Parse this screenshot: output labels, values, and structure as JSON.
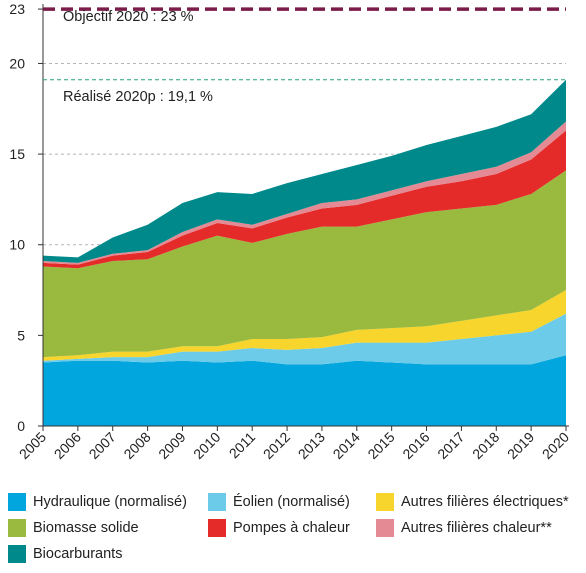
{
  "chart_data": {
    "type": "area",
    "stacked": true,
    "x": [
      "2005",
      "2006",
      "2007",
      "2008",
      "2009",
      "2010",
      "2011",
      "2012",
      "2013",
      "2014",
      "2015",
      "2016",
      "2017",
      "2018",
      "2019",
      "2020"
    ],
    "ylim": [
      0,
      23.5
    ],
    "yticks": [
      0,
      5,
      10,
      15,
      20,
      23
    ],
    "grid": "horizontal dashed",
    "legend_position": "bottom",
    "series": [
      {
        "name": "Hydraulique (normalisé)",
        "color": "#00a6dd",
        "values": [
          3.5,
          3.6,
          3.6,
          3.5,
          3.6,
          3.5,
          3.6,
          3.4,
          3.4,
          3.6,
          3.5,
          3.4,
          3.4,
          3.4,
          3.4,
          3.9
        ]
      },
      {
        "name": "Éolien (normalisé)",
        "color": "#6ccbe9",
        "values": [
          0.1,
          0.1,
          0.2,
          0.3,
          0.5,
          0.6,
          0.7,
          0.8,
          0.9,
          1.0,
          1.1,
          1.2,
          1.4,
          1.6,
          1.8,
          2.3
        ]
      },
      {
        "name": "Autres filières électriques*",
        "color": "#f7d52c",
        "values": [
          0.2,
          0.2,
          0.3,
          0.3,
          0.3,
          0.3,
          0.5,
          0.6,
          0.6,
          0.7,
          0.8,
          0.9,
          1.0,
          1.1,
          1.2,
          1.3
        ]
      },
      {
        "name": "Biomasse solide",
        "color": "#9ab93f",
        "values": [
          5.0,
          4.8,
          5.0,
          5.1,
          5.5,
          6.1,
          5.3,
          5.8,
          6.1,
          5.7,
          6.0,
          6.3,
          6.2,
          6.1,
          6.4,
          6.6
        ]
      },
      {
        "name": "Pompes à chaleur",
        "color": "#e52a2a",
        "values": [
          0.2,
          0.2,
          0.3,
          0.4,
          0.6,
          0.7,
          0.8,
          0.9,
          1.0,
          1.2,
          1.3,
          1.4,
          1.5,
          1.7,
          1.9,
          2.2
        ]
      },
      {
        "name": "Autres filières chaleur**",
        "color": "#e48a94",
        "values": [
          0.1,
          0.1,
          0.1,
          0.1,
          0.2,
          0.2,
          0.2,
          0.2,
          0.3,
          0.3,
          0.3,
          0.3,
          0.4,
          0.4,
          0.4,
          0.5
        ]
      },
      {
        "name": "Biocarburants",
        "color": "#00898b",
        "values": [
          0.3,
          0.3,
          0.9,
          1.4,
          1.6,
          1.5,
          1.7,
          1.7,
          1.6,
          1.9,
          1.9,
          2.0,
          2.1,
          2.2,
          2.1,
          2.3
        ]
      }
    ],
    "reference_lines": [
      {
        "value": 23,
        "label": "Objectif 2020 : 23 %",
        "color": "#7a1d4a",
        "style": "thick dashed"
      },
      {
        "value": 19.1,
        "label": "Réalisé 2020p : 19,1 %",
        "color": "#2aa37a",
        "style": "thin dashed"
      }
    ]
  }
}
